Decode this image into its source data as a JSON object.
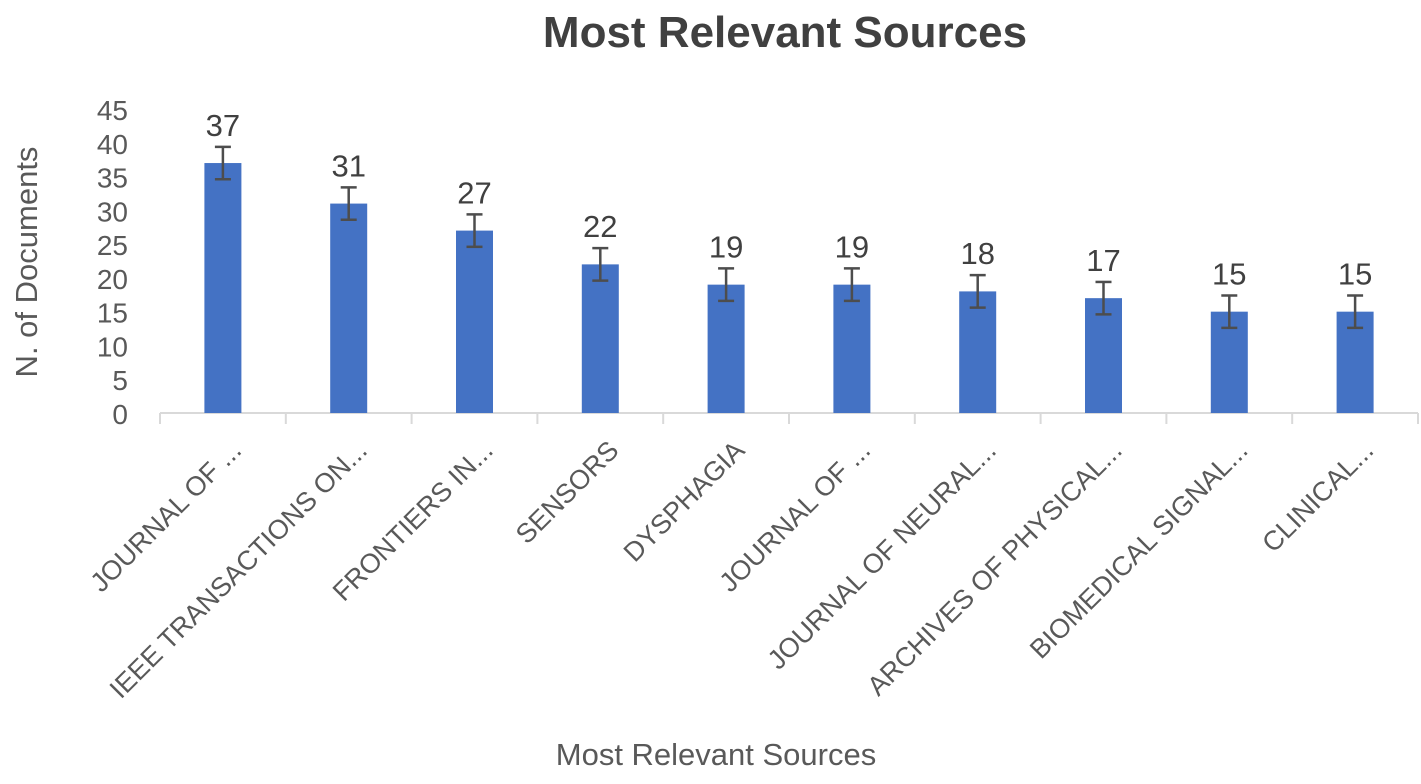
{
  "chart_data": {
    "type": "bar",
    "title": "Most Relevant Sources",
    "xlabel": "Most Relevant Sources",
    "ylabel": "N. of Documents",
    "categories": [
      "JOURNAL OF ...",
      "IEEE TRANSACTIONS ON...",
      "FRONTIERS IN...",
      "SENSORS",
      "DYSPHAGIA",
      "JOURNAL OF ...",
      "JOURNAL OF NEURAL...",
      "ARCHIVES OF PHYSICAL...",
      "BIOMEDICAL SIGNAL...",
      "CLINICAL..."
    ],
    "values": [
      37,
      31,
      27,
      22,
      19,
      19,
      18,
      17,
      15,
      15
    ],
    "error": 2.4,
    "ylim": [
      0,
      45
    ],
    "yticks": [
      0,
      5,
      10,
      15,
      20,
      25,
      30,
      35,
      40,
      45
    ],
    "grid": false,
    "legend": "none",
    "bar_color": "#4472C4",
    "error_color": "#4d4d4d",
    "text_color": "#595959",
    "title_color": "#404040",
    "axis_color": "#d9d9d9"
  }
}
